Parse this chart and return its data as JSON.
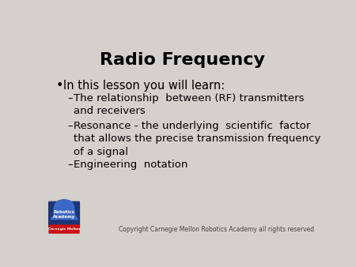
{
  "title": "Radio Frequency",
  "title_fontsize": 16,
  "title_fontweight": "bold",
  "title_color": "#000000",
  "background_color": "#d4d0cb",
  "bullet_text": "In this lesson you will learn:",
  "bullet_fontsize": 10.5,
  "sub_bullets": [
    "The relationship  between (RF) transmitters\nand receivers",
    "Resonance - the underlying  scientific  factor\nthat allows the precise transmission frequency\nof a signal",
    "Engineering  notation"
  ],
  "sub_bullet_fontsize": 9.5,
  "text_color": "#000000",
  "copyright_text": "Copyright Carnegie Mellon Robotics Academy all rights reserved",
  "copyright_fontsize": 5.5,
  "copyright_color": "#444444",
  "logo_blue_dark": "#1e3575",
  "logo_blue_light": "#3d68c5",
  "logo_red": "#cc1111",
  "logo_text": "Robotics\nAcademy",
  "logo_bottom_text": "Carnegie Mellon"
}
